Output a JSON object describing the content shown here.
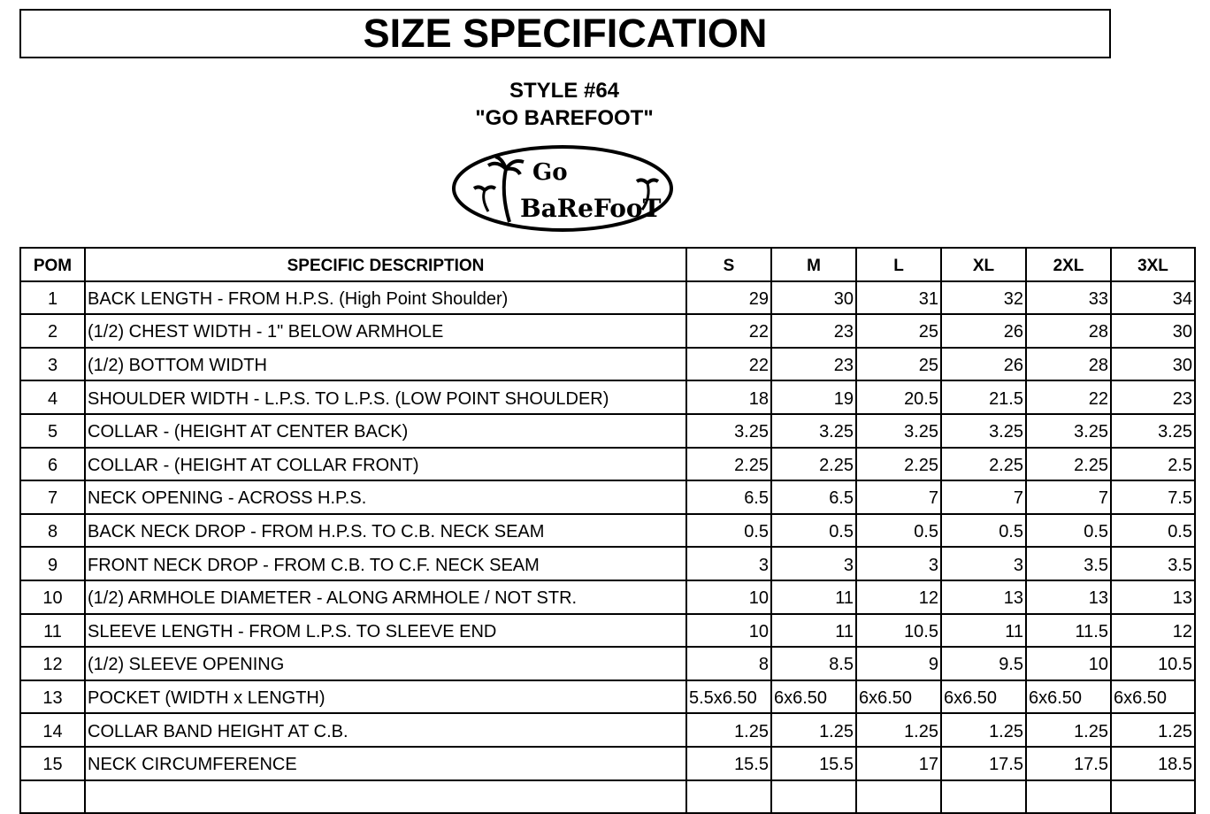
{
  "title": "SIZE SPECIFICATION",
  "style_number": "STYLE #64",
  "style_name": "\"GO BAREFOOT\"",
  "logo": {
    "text_top": "Go",
    "text_bottom": "BareFoot"
  },
  "table": {
    "headers": {
      "pom": "POM",
      "description": "SPECIFIC DESCRIPTION",
      "sizes": [
        "S",
        "M",
        "L",
        "XL",
        "2XL",
        "3XL"
      ]
    },
    "rows": [
      {
        "pom": "1",
        "description": "BACK LENGTH - FROM H.P.S. (High Point Shoulder)",
        "values": [
          "29",
          "30",
          "31",
          "32",
          "33",
          "34"
        ]
      },
      {
        "pom": "2",
        "description": "(1/2) CHEST WIDTH - 1\" BELOW ARMHOLE",
        "values": [
          "22",
          "23",
          "25",
          "26",
          "28",
          "30"
        ]
      },
      {
        "pom": "3",
        "description": "(1/2) BOTTOM WIDTH",
        "values": [
          "22",
          "23",
          "25",
          "26",
          "28",
          "30"
        ]
      },
      {
        "pom": "4",
        "description": "SHOULDER WIDTH - L.P.S. TO L.P.S. (LOW POINT SHOULDER)",
        "values": [
          "18",
          "19",
          "20.5",
          "21.5",
          "22",
          "23"
        ]
      },
      {
        "pom": "5",
        "description": "COLLAR - (HEIGHT AT CENTER BACK)",
        "values": [
          "3.25",
          "3.25",
          "3.25",
          "3.25",
          "3.25",
          "3.25"
        ]
      },
      {
        "pom": "6",
        "description": "COLLAR - (HEIGHT AT COLLAR FRONT)",
        "values": [
          "2.25",
          "2.25",
          "2.25",
          "2.25",
          "2.25",
          "2.5"
        ]
      },
      {
        "pom": "7",
        "description": "NECK OPENING - ACROSS H.P.S.",
        "values": [
          "6.5",
          "6.5",
          "7",
          "7",
          "7",
          "7.5"
        ]
      },
      {
        "pom": "8",
        "description": "BACK NECK DROP - FROM H.P.S. TO C.B. NECK SEAM",
        "values": [
          "0.5",
          "0.5",
          "0.5",
          "0.5",
          "0.5",
          "0.5"
        ]
      },
      {
        "pom": "9",
        "description": "FRONT NECK DROP - FROM C.B. TO C.F. NECK SEAM",
        "values": [
          "3",
          "3",
          "3",
          "3",
          "3.5",
          "3.5"
        ]
      },
      {
        "pom": "10",
        "description": "(1/2) ARMHOLE DIAMETER - ALONG ARMHOLE / NOT STR.",
        "values": [
          "10",
          "11",
          "12",
          "13",
          "13",
          "13"
        ]
      },
      {
        "pom": "11",
        "description": "SLEEVE LENGTH - FROM L.P.S. TO SLEEVE END",
        "values": [
          "10",
          "11",
          "10.5",
          "11",
          "11.5",
          "12"
        ]
      },
      {
        "pom": "12",
        "description": "(1/2) SLEEVE OPENING",
        "values": [
          "8",
          "8.5",
          "9",
          "9.5",
          "10",
          "10.5"
        ]
      },
      {
        "pom": "13",
        "description": "POCKET (WIDTH x LENGTH)",
        "values": [
          "5.5x6.50",
          "6x6.50",
          "6x6.50",
          "6x6.50",
          "6x6.50",
          "6x6.50"
        ]
      },
      {
        "pom": "14",
        "description": "COLLAR BAND HEIGHT AT C.B.",
        "values": [
          "1.25",
          "1.25",
          "1.25",
          "1.25",
          "1.25",
          "1.25"
        ]
      },
      {
        "pom": "15",
        "description": "NECK CIRCUMFERENCE",
        "values": [
          "15.5",
          "15.5",
          "17",
          "17.5",
          "17.5",
          "18.5"
        ]
      },
      {
        "pom": "",
        "description": "",
        "values": [
          "",
          "",
          "",
          "",
          "",
          ""
        ]
      }
    ]
  }
}
